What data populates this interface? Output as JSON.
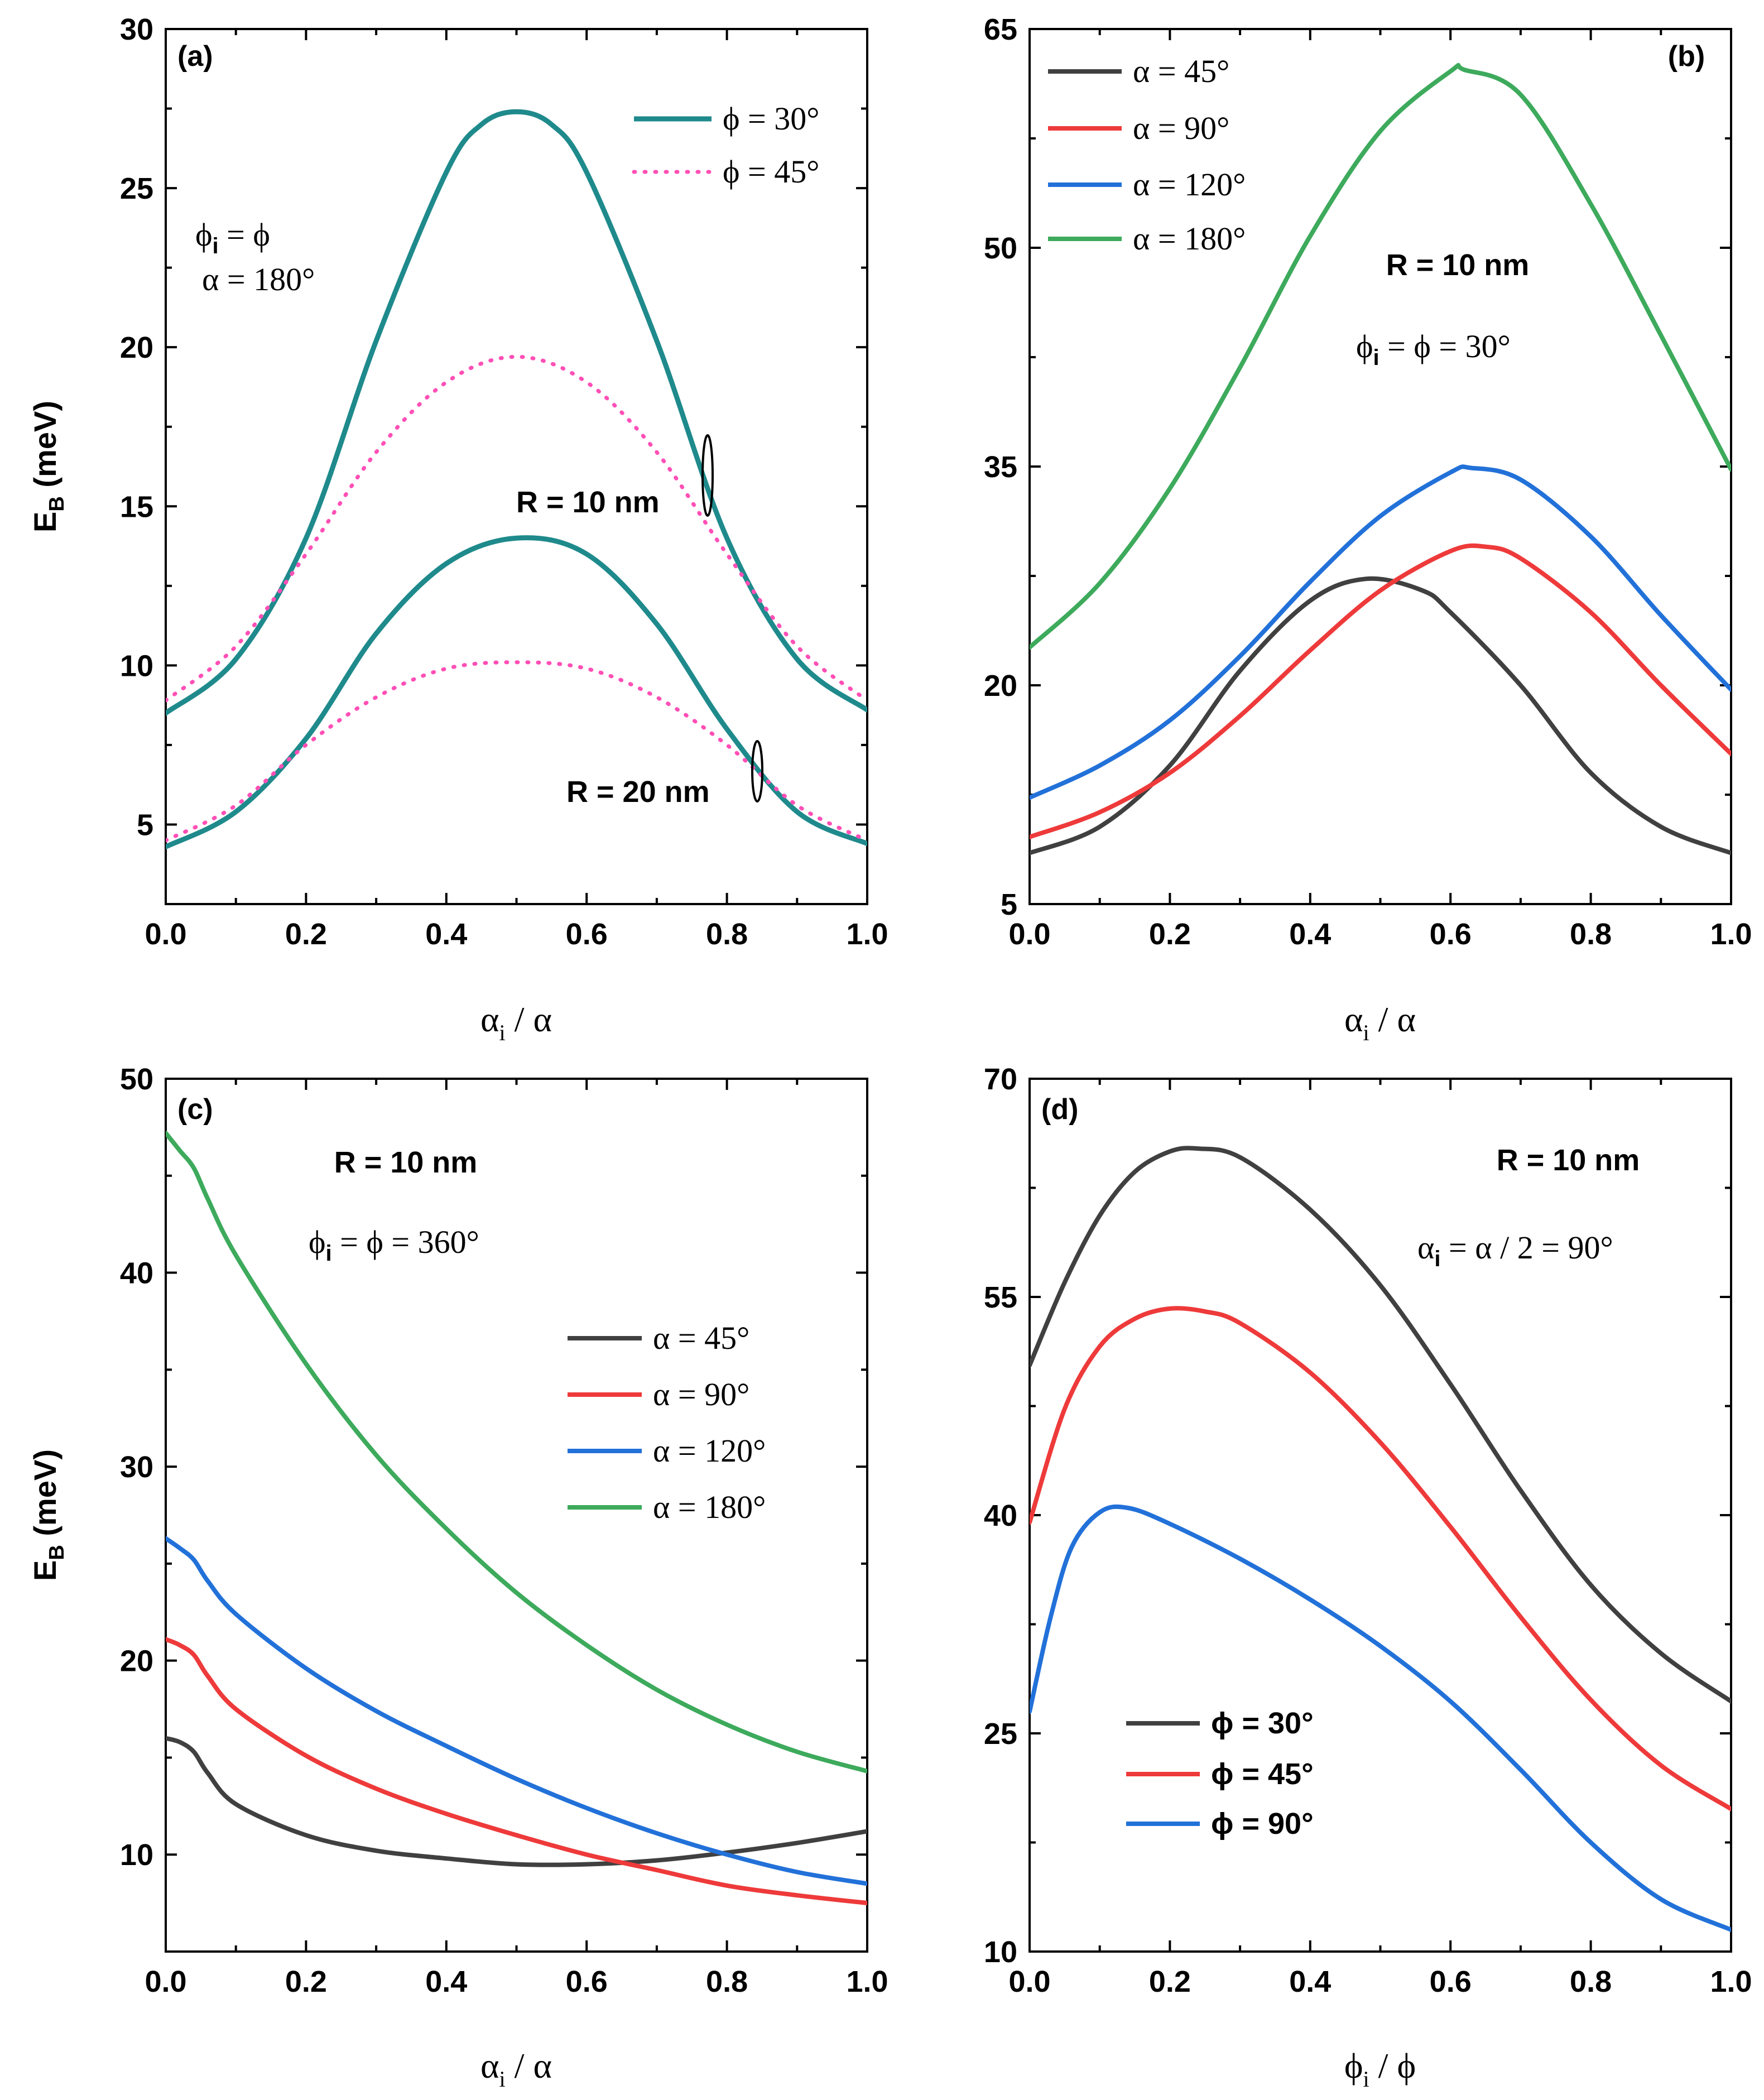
{
  "figure": {
    "colors": {
      "teal": "#1F8A8C",
      "pink": "#FF4FB6",
      "gray": "#404040",
      "red": "#EE3A3A",
      "blue": "#2271D9",
      "green": "#3DAA5C"
    }
  },
  "chart_data": [
    {
      "id": "a",
      "panel_label": "(a)",
      "type": "line",
      "xlabel_main": "α",
      "xlabel_sub": "i",
      "xlabel_rest": " / α",
      "ylabel_main": "E",
      "ylabel_sub": "B",
      "ylabel_rest": " (meV)",
      "xlim": [
        0,
        1
      ],
      "ylim": [
        2.5,
        30
      ],
      "xticks": [
        0,
        0.2,
        0.4,
        0.6,
        0.8,
        1.0
      ],
      "xtick_labels": [
        "0.0",
        "0.2",
        "0.4",
        "0.6",
        "0.8",
        "1.0"
      ],
      "yticks": [
        5,
        10,
        15,
        20,
        25,
        30
      ],
      "ytick_labels": [
        "5",
        "10",
        "15",
        "20",
        "25",
        "30"
      ],
      "annotations": {
        "line1_main": "ϕ",
        "line1_sub": "i",
        "line1_rest": " =  ϕ",
        "line2": "α = 180°",
        "r10": "R = 10 nm",
        "r20": "R = 20 nm"
      },
      "legend_position": "top-right",
      "series": [
        {
          "name": "ϕ = 30°",
          "group": "R = 10 nm",
          "color": "teal",
          "style": "solid",
          "x": [
            0,
            0.1,
            0.2,
            0.3,
            0.4,
            0.45,
            0.5,
            0.55,
            0.6,
            0.7,
            0.8,
            0.9,
            1.0
          ],
          "y": [
            8.5,
            10.2,
            14.0,
            20.2,
            25.5,
            27.0,
            27.4,
            27.0,
            25.5,
            20.2,
            14.0,
            10.2,
            8.6
          ]
        },
        {
          "name": "ϕ = 45°",
          "group": "R = 10 nm",
          "color": "pink",
          "style": "dotted",
          "x": [
            0,
            0.1,
            0.2,
            0.3,
            0.4,
            0.5,
            0.6,
            0.7,
            0.8,
            0.9,
            1.0
          ],
          "y": [
            8.9,
            10.6,
            13.5,
            16.7,
            18.9,
            19.7,
            18.9,
            16.7,
            13.5,
            10.6,
            8.9
          ]
        },
        {
          "name": "ϕ = 30°",
          "group": "R = 20 nm",
          "color": "teal",
          "style": "solid",
          "x": [
            0,
            0.1,
            0.2,
            0.3,
            0.4,
            0.5,
            0.6,
            0.7,
            0.8,
            0.9,
            1.0
          ],
          "y": [
            4.3,
            5.4,
            7.7,
            11.0,
            13.2,
            14.0,
            13.5,
            11.3,
            8.0,
            5.4,
            4.4
          ]
        },
        {
          "name": "ϕ = 45°",
          "group": "R = 20 nm",
          "color": "pink",
          "style": "dotted",
          "x": [
            0,
            0.1,
            0.2,
            0.3,
            0.4,
            0.5,
            0.6,
            0.7,
            0.8,
            0.9,
            1.0
          ],
          "y": [
            4.5,
            5.6,
            7.5,
            9.0,
            9.9,
            10.1,
            9.9,
            9.0,
            7.5,
            5.6,
            4.5
          ]
        }
      ]
    },
    {
      "id": "b",
      "panel_label": "(b)",
      "type": "line",
      "xlabel_main": "α",
      "xlabel_sub": "i",
      "xlabel_rest": " / α",
      "xlim": [
        0,
        1
      ],
      "ylim": [
        5,
        65
      ],
      "xticks": [
        0,
        0.2,
        0.4,
        0.6,
        0.8,
        1.0
      ],
      "xtick_labels": [
        "0.0",
        "0.2",
        "0.4",
        "0.6",
        "0.8",
        "1.0"
      ],
      "yticks": [
        5,
        20,
        35,
        50,
        65
      ],
      "ytick_labels": [
        "5",
        "20",
        "35",
        "50",
        "65"
      ],
      "annotations": {
        "line1": "R = 10 nm",
        "line2_main": "ϕ",
        "line2_sub": "i",
        "line2_rest": " =  ϕ  =  30°"
      },
      "legend_position": "top-left",
      "series": [
        {
          "name": "α = 45°",
          "color": "gray",
          "x": [
            0,
            0.1,
            0.2,
            0.3,
            0.4,
            0.48,
            0.56,
            0.6,
            0.7,
            0.8,
            0.9,
            1.0
          ],
          "y": [
            8.5,
            10.3,
            14.5,
            21.0,
            25.8,
            27.3,
            26.5,
            25.0,
            20.0,
            14.0,
            10.3,
            8.5
          ]
        },
        {
          "name": "α = 90°",
          "color": "red",
          "x": [
            0,
            0.1,
            0.2,
            0.3,
            0.4,
            0.5,
            0.6,
            0.65,
            0.7,
            0.8,
            0.9,
            1.0
          ],
          "y": [
            9.6,
            11.3,
            14.0,
            17.9,
            22.4,
            26.5,
            29.2,
            29.5,
            28.7,
            25.0,
            20.0,
            15.3
          ]
        },
        {
          "name": "α = 120°",
          "color": "blue",
          "x": [
            0,
            0.1,
            0.2,
            0.3,
            0.4,
            0.5,
            0.6,
            0.63,
            0.7,
            0.8,
            0.9,
            1.0
          ],
          "y": [
            12.3,
            14.5,
            17.6,
            22.0,
            27.1,
            31.6,
            34.6,
            34.9,
            34.1,
            30.2,
            24.8,
            19.7
          ]
        },
        {
          "name": "α = 180°",
          "color": "green",
          "x": [
            0,
            0.1,
            0.2,
            0.3,
            0.4,
            0.5,
            0.6,
            0.62,
            0.7,
            0.8,
            0.9,
            1.0
          ],
          "y": [
            22.6,
            27.0,
            33.5,
            41.8,
            50.8,
            58.0,
            62.1,
            62.2,
            60.5,
            53.0,
            44.0,
            34.8
          ]
        }
      ]
    },
    {
      "id": "c",
      "panel_label": "(c)",
      "type": "line",
      "xlabel_main": "α",
      "xlabel_sub": "i",
      "xlabel_rest": " / α",
      "ylabel_main": "E",
      "ylabel_sub": "B",
      "ylabel_rest": " (meV)",
      "xlim": [
        0,
        1
      ],
      "ylim": [
        5,
        50
      ],
      "xticks": [
        0,
        0.2,
        0.4,
        0.6,
        0.8,
        1.0
      ],
      "xtick_labels": [
        "0.0",
        "0.2",
        "0.4",
        "0.6",
        "0.8",
        "1.0"
      ],
      "yticks": [
        10,
        20,
        30,
        40,
        50
      ],
      "ytick_labels": [
        "10",
        "20",
        "30",
        "40",
        "50"
      ],
      "annotations": {
        "line1": "R = 10 nm",
        "line2_main": "ϕ",
        "line2_sub": "i",
        "line2_rest": " = ϕ = 360°"
      },
      "legend_position": "right",
      "series": [
        {
          "name": "α = 45°",
          "color": "gray",
          "x": [
            0,
            0.02,
            0.04,
            0.06,
            0.1,
            0.2,
            0.3,
            0.4,
            0.5,
            0.6,
            0.7,
            0.8,
            0.9,
            1.0
          ],
          "y": [
            16.0,
            15.8,
            15.3,
            14.2,
            12.6,
            11.0,
            10.2,
            9.8,
            9.5,
            9.5,
            9.7,
            10.1,
            10.6,
            11.2
          ]
        },
        {
          "name": "α = 90°",
          "color": "red",
          "x": [
            0,
            0.02,
            0.04,
            0.06,
            0.1,
            0.2,
            0.3,
            0.4,
            0.5,
            0.6,
            0.7,
            0.8,
            0.9,
            1.0
          ],
          "y": [
            21.1,
            20.8,
            20.3,
            19.2,
            17.5,
            15.1,
            13.4,
            12.1,
            11.0,
            10.0,
            9.2,
            8.4,
            7.9,
            7.5
          ]
        },
        {
          "name": "α = 120°",
          "color": "blue",
          "x": [
            0,
            0.02,
            0.04,
            0.06,
            0.1,
            0.2,
            0.3,
            0.4,
            0.5,
            0.6,
            0.7,
            0.8,
            0.9,
            1.0
          ],
          "y": [
            26.3,
            25.8,
            25.2,
            24.1,
            22.4,
            19.6,
            17.4,
            15.6,
            13.9,
            12.4,
            11.1,
            10.0,
            9.1,
            8.5
          ]
        },
        {
          "name": "α = 180°",
          "color": "green",
          "x": [
            0,
            0.02,
            0.04,
            0.06,
            0.1,
            0.2,
            0.3,
            0.4,
            0.5,
            0.6,
            0.7,
            0.8,
            0.9,
            1.0
          ],
          "y": [
            47.2,
            46.3,
            45.4,
            43.8,
            40.9,
            35.3,
            30.6,
            26.8,
            23.5,
            20.8,
            18.5,
            16.7,
            15.3,
            14.3
          ]
        }
      ]
    },
    {
      "id": "d",
      "panel_label": "(d)",
      "type": "line",
      "xlabel_main": "ϕ",
      "xlabel_sub": "i",
      "xlabel_rest": " / ϕ",
      "xlim": [
        0,
        1
      ],
      "ylim": [
        10,
        70
      ],
      "xticks": [
        0,
        0.2,
        0.4,
        0.6,
        0.8,
        1.0
      ],
      "xtick_labels": [
        "0.0",
        "0.2",
        "0.4",
        "0.6",
        "0.8",
        "1.0"
      ],
      "yticks": [
        10,
        25,
        40,
        55,
        70
      ],
      "ytick_labels": [
        "10",
        "25",
        "40",
        "55",
        "70"
      ],
      "annotations": {
        "line1": "R = 10 nm",
        "line2_main": "α",
        "line2_sub": "i",
        "line2_rest": " = α / 2 = 90°"
      },
      "legend_position": "bottom-left",
      "series": [
        {
          "name": "ϕ = 30°",
          "color": "gray",
          "x": [
            0,
            0.05,
            0.1,
            0.15,
            0.2,
            0.24,
            0.3,
            0.4,
            0.5,
            0.6,
            0.7,
            0.8,
            0.9,
            1.0
          ],
          "y": [
            50.3,
            56.0,
            60.6,
            63.6,
            65.0,
            65.2,
            64.6,
            61.0,
            55.8,
            49.0,
            41.7,
            35.2,
            30.5,
            27.2
          ]
        },
        {
          "name": "ϕ = 45°",
          "color": "red",
          "x": [
            0,
            0.05,
            0.1,
            0.15,
            0.2,
            0.25,
            0.3,
            0.4,
            0.5,
            0.6,
            0.7,
            0.8,
            0.9,
            1.0
          ],
          "y": [
            39.5,
            47.3,
            51.6,
            53.5,
            54.2,
            54.0,
            53.2,
            49.8,
            45.0,
            39.2,
            33.0,
            27.3,
            22.8,
            19.8
          ]
        },
        {
          "name": "ϕ = 90°",
          "color": "blue",
          "x": [
            0,
            0.03,
            0.06,
            0.1,
            0.14,
            0.2,
            0.3,
            0.4,
            0.5,
            0.6,
            0.7,
            0.8,
            0.9,
            1.0
          ],
          "y": [
            26.5,
            33.0,
            37.8,
            40.2,
            40.5,
            39.4,
            37.0,
            34.2,
            31.0,
            27.2,
            22.5,
            17.5,
            13.6,
            11.5
          ]
        }
      ]
    }
  ]
}
